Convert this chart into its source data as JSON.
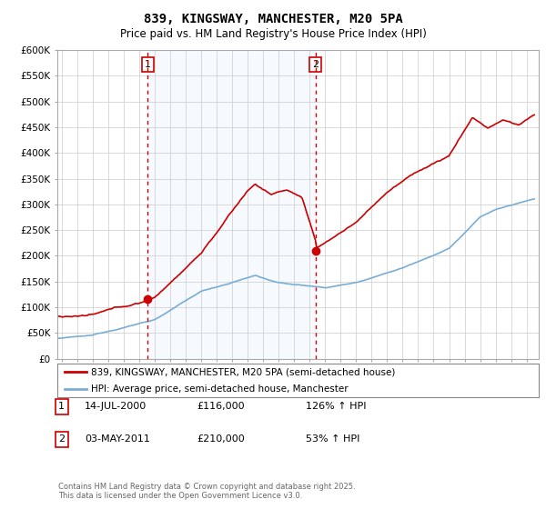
{
  "title": "839, KINGSWAY, MANCHESTER, M20 5PA",
  "subtitle": "Price paid vs. HM Land Registry's House Price Index (HPI)",
  "ylim": [
    0,
    600000
  ],
  "yticks": [
    0,
    50000,
    100000,
    150000,
    200000,
    250000,
    300000,
    350000,
    400000,
    450000,
    500000,
    550000,
    600000
  ],
  "xlim_start": 1994.7,
  "xlim_end": 2025.8,
  "hpi_color": "#7aadd4",
  "hpi_fill_color": "#ddeeff",
  "price_color": "#cc0000",
  "vline_color": "#cc0000",
  "shade_color": "#ddeeff",
  "sale1_year": 2000.54,
  "sale1_price": 116000,
  "sale2_year": 2011.37,
  "sale2_price": 210000,
  "legend_line1": "839, KINGSWAY, MANCHESTER, M20 5PA (semi-detached house)",
  "legend_line2": "HPI: Average price, semi-detached house, Manchester",
  "footnote": "Contains HM Land Registry data © Crown copyright and database right 2025.\nThis data is licensed under the Open Government Licence v3.0.",
  "background_color": "#ffffff",
  "grid_color": "#cccccc"
}
